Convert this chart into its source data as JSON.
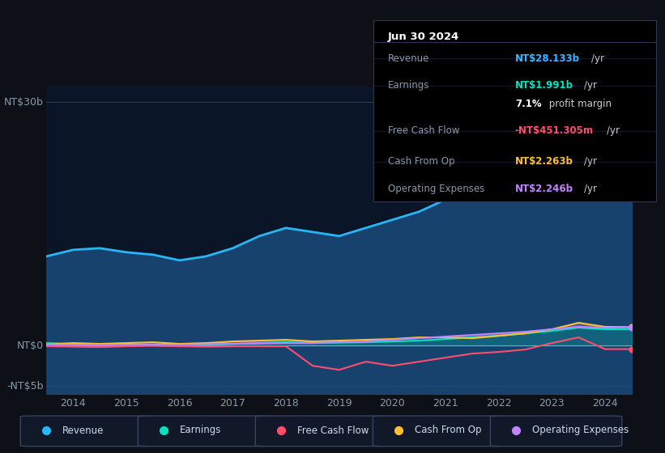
{
  "bg_color": "#0d1117",
  "plot_bg_color": "#0a1628",
  "title_box": {
    "date": "Jun 30 2024",
    "rows": [
      {
        "label": "Revenue",
        "value": "NT$28.133b",
        "unit": "/yr",
        "value_color": "#38b6ff"
      },
      {
        "label": "Earnings",
        "value": "NT$1.991b",
        "unit": "/yr",
        "value_color": "#00e5c0"
      },
      {
        "label": "",
        "value": "7.1%",
        "unit": " profit margin",
        "value_color": "#ffffff"
      },
      {
        "label": "Free Cash Flow",
        "value": "-NT$451.305m",
        "unit": "/yr",
        "value_color": "#ff4d6d"
      },
      {
        "label": "Cash From Op",
        "value": "NT$2.263b",
        "unit": "/yr",
        "value_color": "#ffc030"
      },
      {
        "label": "Operating Expenses",
        "value": "NT$2.246b",
        "unit": "/yr",
        "value_color": "#c084fc"
      }
    ]
  },
  "years": [
    2013.5,
    2014.0,
    2014.5,
    2015.0,
    2015.5,
    2016.0,
    2016.5,
    2017.0,
    2017.5,
    2018.0,
    2018.5,
    2019.0,
    2019.5,
    2020.0,
    2020.5,
    2021.0,
    2021.5,
    2022.0,
    2022.5,
    2023.0,
    2023.5,
    2024.0,
    2024.5
  ],
  "revenue": [
    11.0,
    11.8,
    12.0,
    11.5,
    11.2,
    10.5,
    11.0,
    12.0,
    13.5,
    14.5,
    14.0,
    13.5,
    14.5,
    15.5,
    16.5,
    18.0,
    20.0,
    22.0,
    24.0,
    26.5,
    28.5,
    27.5,
    28.1
  ],
  "earnings": [
    0.3,
    0.2,
    0.15,
    0.1,
    0.05,
    -0.1,
    0.1,
    0.2,
    0.3,
    0.4,
    0.3,
    0.35,
    0.4,
    0.5,
    0.6,
    0.8,
    1.0,
    1.2,
    1.5,
    1.8,
    2.2,
    2.0,
    1.99
  ],
  "free_cash_flow": [
    -0.1,
    -0.15,
    -0.2,
    -0.1,
    -0.05,
    -0.1,
    -0.15,
    -0.1,
    -0.1,
    -0.1,
    -2.5,
    -3.0,
    -2.0,
    -2.5,
    -2.0,
    -1.5,
    -1.0,
    -0.8,
    -0.5,
    0.3,
    1.0,
    -0.45,
    -0.45
  ],
  "cash_from_op": [
    0.1,
    0.3,
    0.2,
    0.3,
    0.4,
    0.2,
    0.3,
    0.5,
    0.6,
    0.7,
    0.5,
    0.6,
    0.7,
    0.8,
    1.0,
    1.0,
    0.9,
    1.2,
    1.5,
    2.0,
    2.8,
    2.3,
    2.26
  ],
  "operating_expenses": [
    0.1,
    0.1,
    0.1,
    0.1,
    0.1,
    0.1,
    0.15,
    0.2,
    0.25,
    0.3,
    0.3,
    0.4,
    0.5,
    0.7,
    0.9,
    1.1,
    1.3,
    1.5,
    1.7,
    2.0,
    2.3,
    2.2,
    2.25
  ],
  "revenue_color": "#29b6f6",
  "earnings_color": "#00e5c0",
  "fcf_color": "#ff4d6d",
  "cashop_color": "#ffc030",
  "opex_color": "#c084fc",
  "revenue_fill_color": "#1a4a7a",
  "ylim": [
    -6,
    32
  ],
  "yticks": [
    -5,
    0,
    30
  ],
  "ytick_labels": [
    "-NT$5b",
    "NT$0",
    "NT$30b"
  ],
  "xticks": [
    2014,
    2015,
    2016,
    2017,
    2018,
    2019,
    2020,
    2021,
    2022,
    2023,
    2024
  ],
  "legend_items": [
    {
      "label": "Revenue",
      "color": "#29b6f6"
    },
    {
      "label": "Earnings",
      "color": "#00e5c0"
    },
    {
      "label": "Free Cash Flow",
      "color": "#ff4d6d"
    },
    {
      "label": "Cash From Op",
      "color": "#ffc030"
    },
    {
      "label": "Operating Expenses",
      "color": "#c084fc"
    }
  ]
}
